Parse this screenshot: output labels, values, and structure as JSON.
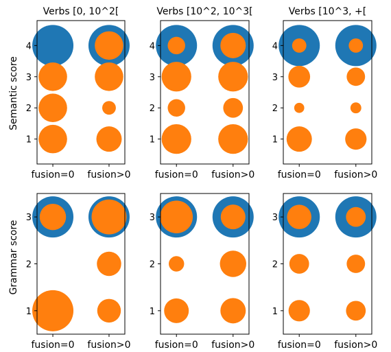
{
  "figure": {
    "ylabels": [
      "Semantic score",
      "Grammar score"
    ]
  },
  "colors": {
    "blue": "#1f77b4",
    "orange": "#ff7f0e",
    "axis": "#000000",
    "background": "#ffffff"
  },
  "chart_data": [
    {
      "type": "scatter",
      "title": "Verbs [0, 10^2[",
      "ylabel": "Semantic score",
      "categories": [
        "fusion=0",
        "fusion>0"
      ],
      "y_ticks": [
        1,
        2,
        3,
        4
      ],
      "ylim": [
        0.2,
        4.8
      ],
      "series": [
        {
          "color": "blue",
          "points": [
            {
              "x": "fusion=0",
              "y": 4,
              "size": 1
            },
            {
              "x": "fusion>0",
              "y": 4,
              "size": 1
            }
          ]
        },
        {
          "color": "orange",
          "points": [
            {
              "x": "fusion=0",
              "y": 3,
              "size": 0.48
            },
            {
              "x": "fusion=0",
              "y": 2,
              "size": 0.48
            },
            {
              "x": "fusion=0",
              "y": 1,
              "size": 0.48
            },
            {
              "x": "fusion>0",
              "y": 4,
              "size": 0.48
            },
            {
              "x": "fusion>0",
              "y": 3,
              "size": 0.48
            },
            {
              "x": "fusion>0",
              "y": 2,
              "size": 0.11
            },
            {
              "x": "fusion>0",
              "y": 1,
              "size": 0.38
            }
          ]
        }
      ]
    },
    {
      "type": "scatter",
      "title": "Verbs [10^2, 10^3[",
      "categories": [
        "fusion=0",
        "fusion>0"
      ],
      "y_ticks": [
        1,
        2,
        3,
        4
      ],
      "ylim": [
        0.2,
        4.8
      ],
      "series": [
        {
          "color": "blue",
          "points": [
            {
              "x": "fusion=0",
              "y": 4,
              "size": 1
            },
            {
              "x": "fusion>0",
              "y": 4,
              "size": 1
            }
          ]
        },
        {
          "color": "orange",
          "points": [
            {
              "x": "fusion=0",
              "y": 4,
              "size": 0.18
            },
            {
              "x": "fusion=0",
              "y": 3,
              "size": 0.52
            },
            {
              "x": "fusion=0",
              "y": 2,
              "size": 0.18
            },
            {
              "x": "fusion=0",
              "y": 1,
              "size": 0.52
            },
            {
              "x": "fusion>0",
              "y": 4,
              "size": 0.38
            },
            {
              "x": "fusion>0",
              "y": 3,
              "size": 0.52
            },
            {
              "x": "fusion>0",
              "y": 2,
              "size": 0.23
            },
            {
              "x": "fusion>0",
              "y": 1,
              "size": 0.52
            }
          ]
        }
      ]
    },
    {
      "type": "scatter",
      "title": "Verbs [10^3, +[",
      "categories": [
        "fusion=0",
        "fusion>0"
      ],
      "y_ticks": [
        1,
        2,
        3,
        4
      ],
      "ylim": [
        0.2,
        4.8
      ],
      "series": [
        {
          "color": "blue",
          "points": [
            {
              "x": "fusion=0",
              "y": 4,
              "size": 1
            },
            {
              "x": "fusion>0",
              "y": 4,
              "size": 1
            }
          ]
        },
        {
          "color": "orange",
          "points": [
            {
              "x": "fusion=0",
              "y": 4,
              "size": 0.12
            },
            {
              "x": "fusion=0",
              "y": 3,
              "size": 0.28
            },
            {
              "x": "fusion=0",
              "y": 2,
              "size": 0.06
            },
            {
              "x": "fusion=0",
              "y": 1,
              "size": 0.38
            },
            {
              "x": "fusion>0",
              "y": 4,
              "size": 0.12
            },
            {
              "x": "fusion>0",
              "y": 3,
              "size": 0.2
            },
            {
              "x": "fusion>0",
              "y": 2,
              "size": 0.07
            },
            {
              "x": "fusion>0",
              "y": 1,
              "size": 0.27
            }
          ]
        }
      ]
    },
    {
      "type": "scatter",
      "ylabel": "Grammar score",
      "categories": [
        "fusion=0",
        "fusion>0"
      ],
      "y_ticks": [
        1,
        2,
        3
      ],
      "ylim": [
        0.5,
        3.5
      ],
      "series": [
        {
          "color": "blue",
          "points": [
            {
              "x": "fusion=0",
              "y": 3,
              "size": 1
            },
            {
              "x": "fusion>0",
              "y": 3,
              "size": 1
            }
          ]
        },
        {
          "color": "orange",
          "points": [
            {
              "x": "fusion=0",
              "y": 3,
              "size": 0.41
            },
            {
              "x": "fusion=0",
              "y": 1,
              "size": 1
            },
            {
              "x": "fusion>0",
              "y": 3,
              "size": 0.72
            },
            {
              "x": "fusion>0",
              "y": 2,
              "size": 0.35
            },
            {
              "x": "fusion>0",
              "y": 1,
              "size": 0.33
            }
          ]
        }
      ]
    },
    {
      "type": "scatter",
      "categories": [
        "fusion=0",
        "fusion>0"
      ],
      "y_ticks": [
        1,
        2,
        3
      ],
      "ylim": [
        0.5,
        3.5
      ],
      "series": [
        {
          "color": "blue",
          "points": [
            {
              "x": "fusion=0",
              "y": 3,
              "size": 1
            },
            {
              "x": "fusion>0",
              "y": 3,
              "size": 1
            }
          ]
        },
        {
          "color": "orange",
          "points": [
            {
              "x": "fusion=0",
              "y": 3,
              "size": 0.63
            },
            {
              "x": "fusion=0",
              "y": 2,
              "size": 0.14
            },
            {
              "x": "fusion=0",
              "y": 1,
              "size": 0.36
            },
            {
              "x": "fusion>0",
              "y": 3,
              "size": 0.36
            },
            {
              "x": "fusion>0",
              "y": 2,
              "size": 0.41
            },
            {
              "x": "fusion>0",
              "y": 1,
              "size": 0.38
            }
          ]
        }
      ]
    },
    {
      "type": "scatter",
      "categories": [
        "fusion=0",
        "fusion>0"
      ],
      "y_ticks": [
        1,
        2,
        3
      ],
      "ylim": [
        0.5,
        3.5
      ],
      "series": [
        {
          "color": "blue",
          "points": [
            {
              "x": "fusion=0",
              "y": 3,
              "size": 1
            },
            {
              "x": "fusion>0",
              "y": 3,
              "size": 1
            }
          ]
        },
        {
          "color": "orange",
          "points": [
            {
              "x": "fusion=0",
              "y": 3,
              "size": 0.35
            },
            {
              "x": "fusion=0",
              "y": 2,
              "size": 0.23
            },
            {
              "x": "fusion=0",
              "y": 1,
              "size": 0.27
            },
            {
              "x": "fusion>0",
              "y": 3,
              "size": 0.23
            },
            {
              "x": "fusion>0",
              "y": 2,
              "size": 0.2
            },
            {
              "x": "fusion>0",
              "y": 1,
              "size": 0.23
            }
          ]
        }
      ]
    }
  ]
}
